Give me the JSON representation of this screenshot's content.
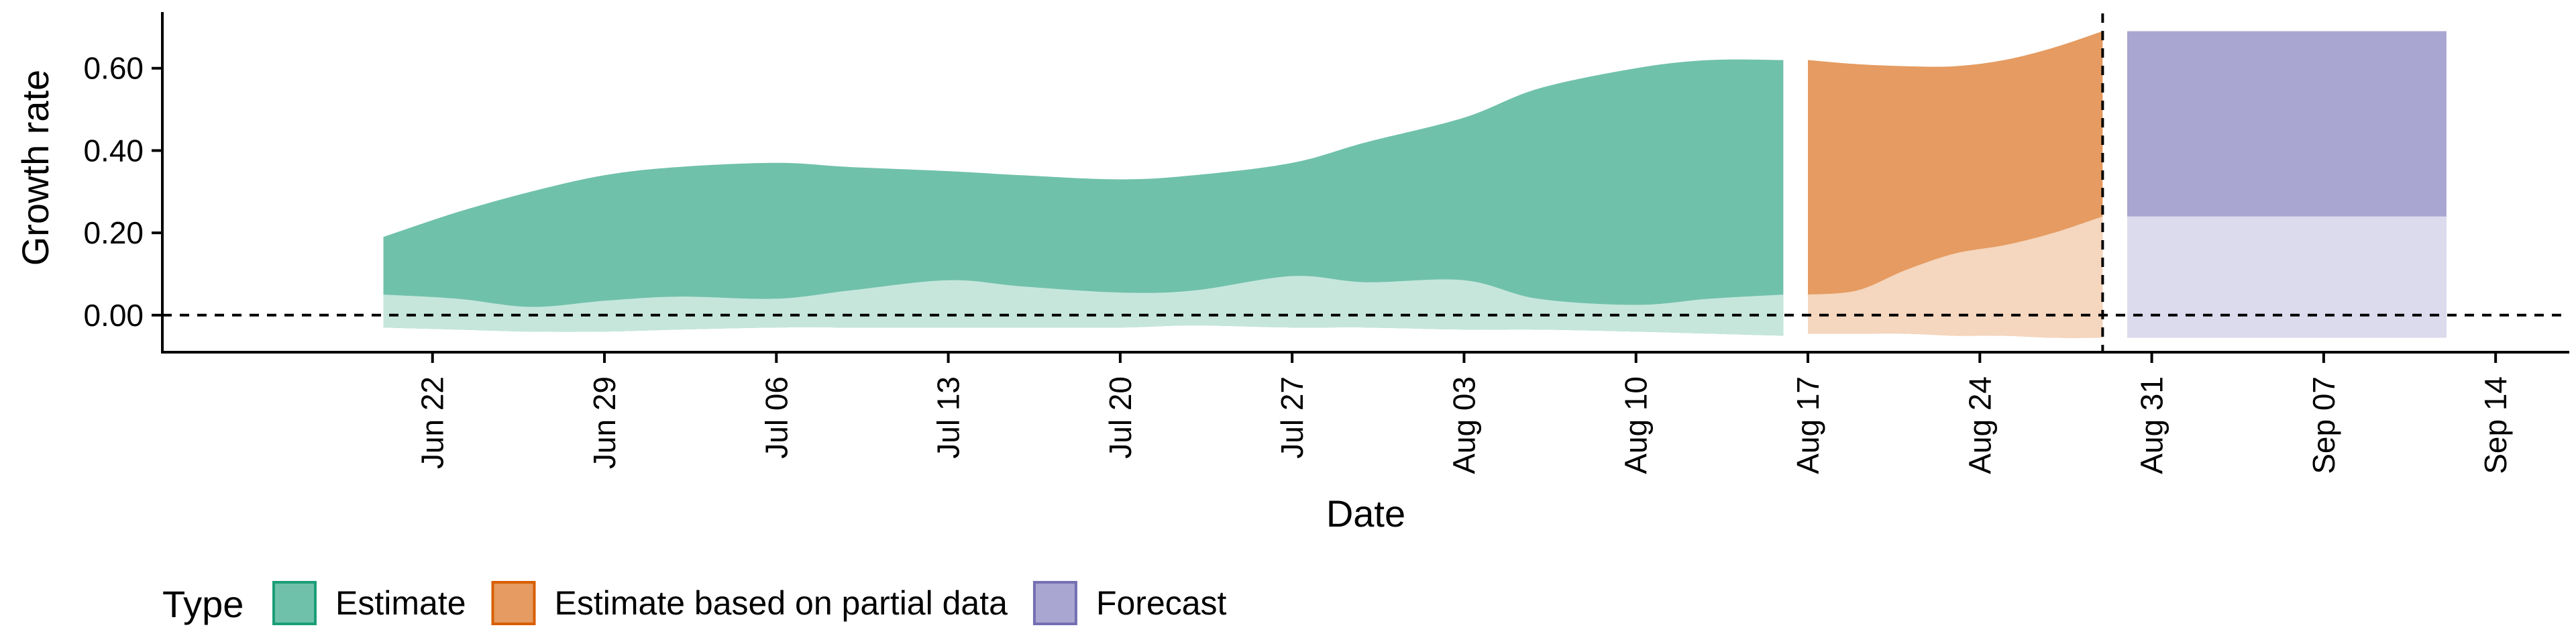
{
  "chart_data": {
    "type": "area",
    "xlabel": "Date",
    "ylabel": "Growth rate",
    "xlim": [
      "2020-06-11",
      "2020-09-17"
    ],
    "ylim": [
      -0.09,
      0.73
    ],
    "x_ticks": [
      "2020-06-22",
      "2020-06-29",
      "2020-07-06",
      "2020-07-13",
      "2020-07-20",
      "2020-07-27",
      "2020-08-03",
      "2020-08-10",
      "2020-08-17",
      "2020-08-24",
      "2020-08-31",
      "2020-09-07",
      "2020-09-14"
    ],
    "x_tick_labels": [
      "Jun 22",
      "Jun 29",
      "Jul 06",
      "Jul 13",
      "Jul 20",
      "Jul 27",
      "Aug 03",
      "Aug 10",
      "Aug 17",
      "Aug 24",
      "Aug 31",
      "Sep 07",
      "Sep 14"
    ],
    "y_ticks": [
      0,
      0.2,
      0.4,
      0.6
    ],
    "y_tick_labels": [
      "0.00",
      "0.20",
      "0.40",
      "0.60"
    ],
    "hline_y": 0,
    "vline_date": "2020-08-29",
    "grid": false,
    "legend": {
      "title": "Type",
      "position": "bottom-left",
      "entries": [
        {
          "label": "Estimate",
          "fill": "#70c1aa",
          "stroke": "#1b9e77"
        },
        {
          "label": "Estimate based on partial data",
          "fill": "#e59b61",
          "stroke": "#d95f02"
        },
        {
          "label": "Forecast",
          "fill": "#a9a6d1",
          "stroke": "#7570b3"
        }
      ]
    },
    "series": [
      {
        "name": "Estimate",
        "fill_outer": "#70c1aa",
        "fill_inner": "#c6e6dc",
        "x": [
          "2020-06-20",
          "2020-06-23",
          "2020-06-26",
          "2020-06-29",
          "2020-07-02",
          "2020-07-06",
          "2020-07-09",
          "2020-07-13",
          "2020-07-16",
          "2020-07-20",
          "2020-07-23",
          "2020-07-27",
          "2020-07-30",
          "2020-08-03",
          "2020-08-06",
          "2020-08-10",
          "2020-08-13",
          "2020-08-16"
        ],
        "outer_upper": [
          0.19,
          0.25,
          0.3,
          0.34,
          0.36,
          0.37,
          0.36,
          0.35,
          0.34,
          0.33,
          0.34,
          0.37,
          0.42,
          0.48,
          0.55,
          0.6,
          0.62,
          0.62
        ],
        "inner_upper": [
          0.05,
          0.04,
          0.02,
          0.035,
          0.045,
          0.04,
          0.06,
          0.085,
          0.07,
          0.055,
          0.06,
          0.095,
          0.08,
          0.085,
          0.04,
          0.025,
          0.04,
          0.05
        ],
        "lower": [
          -0.03,
          -0.035,
          -0.04,
          -0.04,
          -0.035,
          -0.03,
          -0.03,
          -0.03,
          -0.03,
          -0.03,
          -0.025,
          -0.03,
          -0.03,
          -0.035,
          -0.035,
          -0.04,
          -0.045,
          -0.05
        ]
      },
      {
        "name": "Estimate based on partial data",
        "fill_outer": "#e59b61",
        "fill_inner": "#f5d6be",
        "x": [
          "2020-08-17",
          "2020-08-19",
          "2020-08-21",
          "2020-08-23",
          "2020-08-25",
          "2020-08-27",
          "2020-08-29"
        ],
        "outer_upper": [
          0.62,
          0.61,
          0.605,
          0.605,
          0.62,
          0.65,
          0.69
        ],
        "inner_upper": [
          0.05,
          0.06,
          0.11,
          0.15,
          0.17,
          0.2,
          0.24
        ],
        "lower": [
          -0.045,
          -0.045,
          -0.045,
          -0.05,
          -0.05,
          -0.055,
          -0.055
        ]
      },
      {
        "name": "Forecast",
        "fill_outer": "#a9a6d1",
        "fill_inner": "#dcdbed",
        "x": [
          "2020-08-30",
          "2020-09-12"
        ],
        "outer_upper": [
          0.69,
          0.69
        ],
        "inner_upper": [
          0.24,
          0.24
        ],
        "lower": [
          -0.055,
          -0.055
        ]
      }
    ]
  }
}
